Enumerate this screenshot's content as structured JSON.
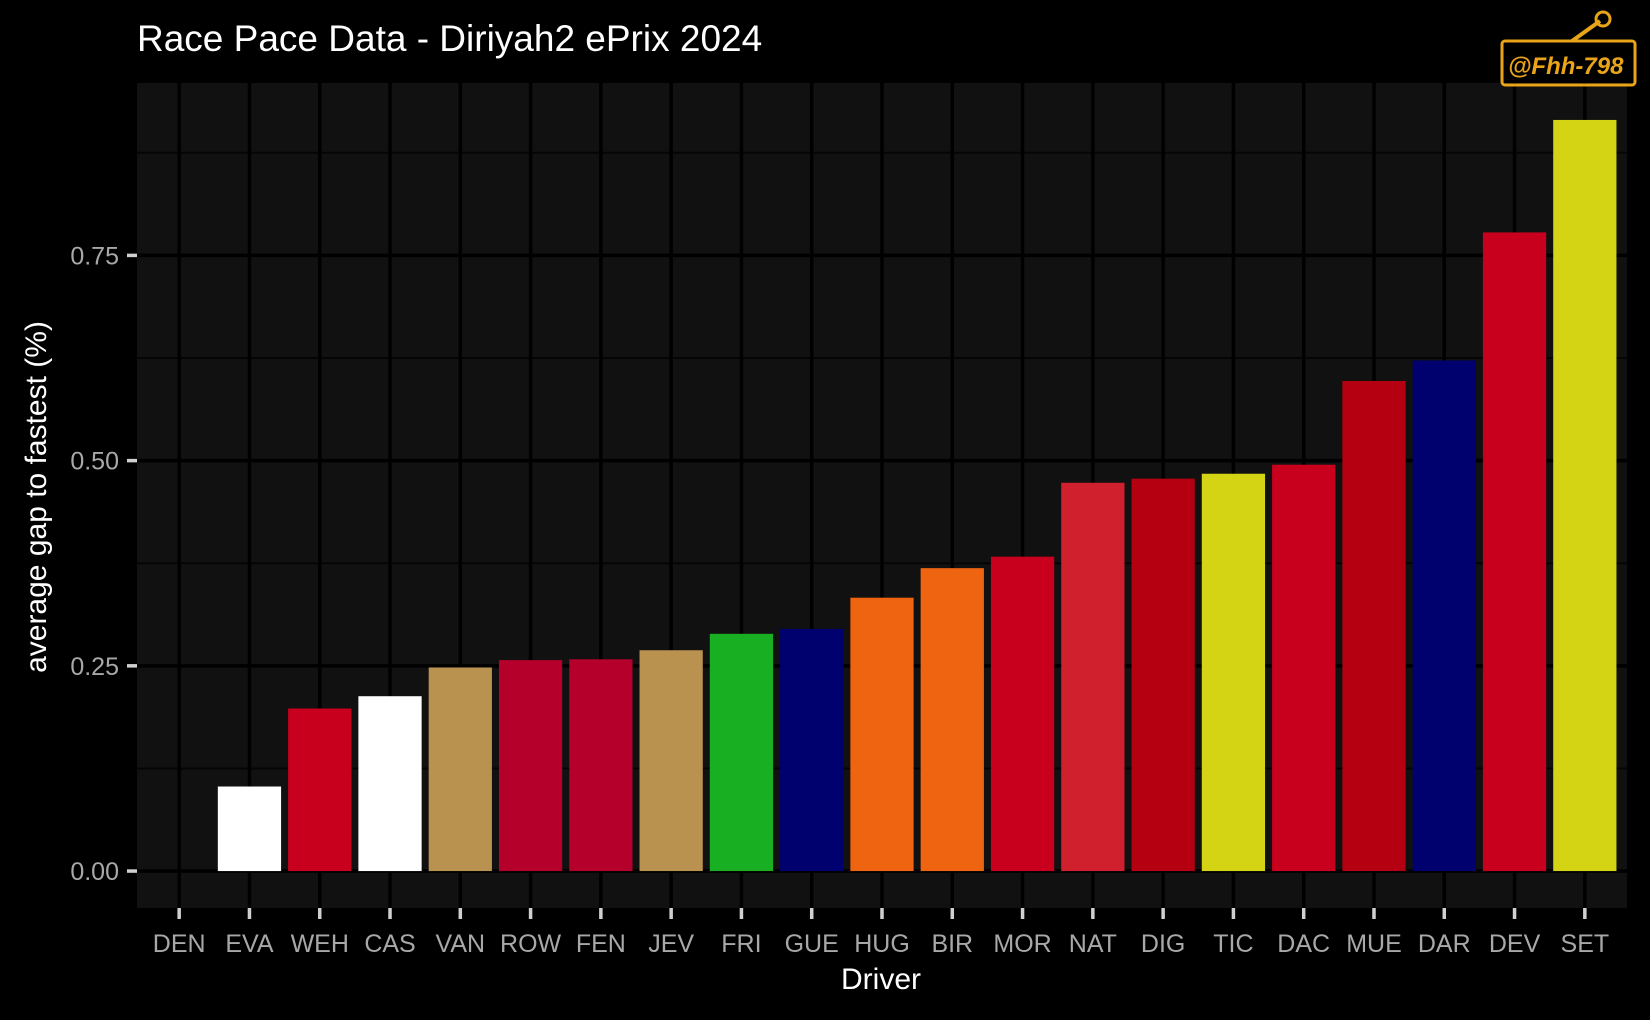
{
  "chart_data": {
    "type": "bar",
    "title": "Race Pace Data - Diriyah2 ePrix 2024",
    "xlabel": "Driver",
    "ylabel": "average gap to fastest (%)",
    "categories": [
      "DEN",
      "EVA",
      "WEH",
      "CAS",
      "VAN",
      "ROW",
      "FEN",
      "JEV",
      "FRI",
      "GUE",
      "HUG",
      "BIR",
      "MOR",
      "NAT",
      "DIG",
      "TIC",
      "DAC",
      "MUE",
      "DAR",
      "DEV",
      "SET"
    ],
    "values": [
      0.0,
      0.103,
      0.198,
      0.213,
      0.248,
      0.257,
      0.258,
      0.269,
      0.289,
      0.295,
      0.333,
      0.369,
      0.383,
      0.473,
      0.478,
      0.484,
      0.495,
      0.597,
      0.622,
      0.778,
      0.915
    ],
    "colors": [
      "#ffffff",
      "#ffffff",
      "#c8001e",
      "#ffffff",
      "#b8924e",
      "#b4002b",
      "#b4002b",
      "#b8924e",
      "#19af22",
      "#00006e",
      "#ef6410",
      "#ef6410",
      "#c8001e",
      "#d0202e",
      "#b40010",
      "#d4d414",
      "#c8001e",
      "#b40010",
      "#00006e",
      "#c8001e",
      "#d4d414"
    ],
    "yticks": [
      0.0,
      0.25,
      0.5,
      0.75
    ],
    "ytick_labels": [
      "0.00",
      "0.25",
      "0.50",
      "0.75"
    ],
    "ylim": [
      -0.045,
      0.96
    ],
    "grid": true,
    "theme": {
      "background": "#000000",
      "panel": "#111111",
      "grid_major": "#000000",
      "grid_minor": "#050505"
    }
  },
  "watermark": {
    "text": "@Fhh-798",
    "color": "#e9a417"
  }
}
